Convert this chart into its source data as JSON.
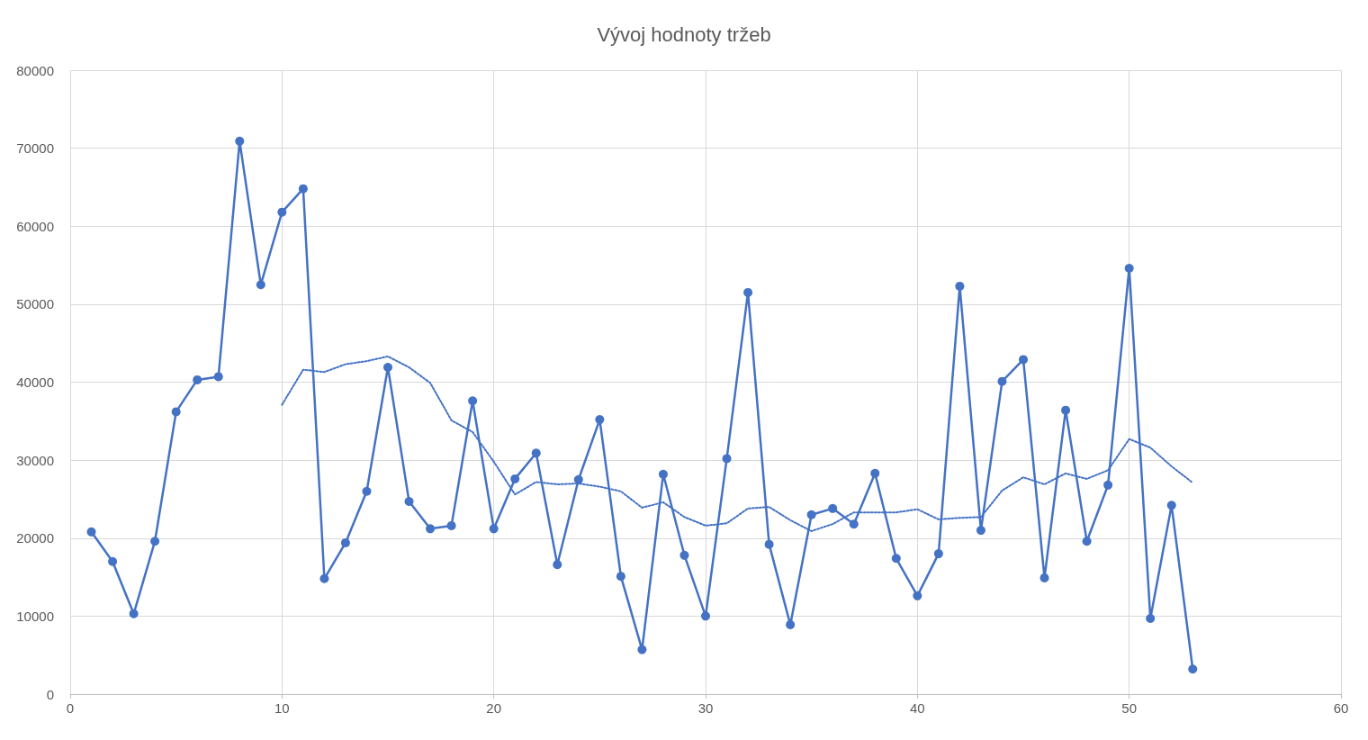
{
  "chart_data": {
    "type": "line",
    "title": "Vývoj hodnoty tržeb",
    "xlim": [
      0,
      60
    ],
    "xticks": [
      0,
      10,
      20,
      30,
      40,
      50,
      60
    ],
    "ylim": [
      0,
      80000
    ],
    "yticks": [
      0,
      10000,
      20000,
      30000,
      40000,
      50000,
      60000,
      70000,
      80000
    ],
    "grid": true,
    "series": [
      {
        "color": "#4472c4",
        "marker": "circle",
        "line_style": "solid",
        "x": [
          1,
          2,
          3,
          4,
          5,
          6,
          7,
          8,
          9,
          10,
          11,
          12,
          13,
          14,
          15,
          16,
          17,
          18,
          19,
          20,
          21,
          22,
          23,
          24,
          25,
          26,
          27,
          28,
          29,
          30,
          31,
          32,
          33,
          34,
          35,
          36,
          37,
          38,
          39,
          40,
          41,
          42,
          43,
          44,
          45,
          46,
          47,
          48,
          49,
          50,
          51,
          52,
          53
        ],
        "values": [
          20800,
          17000,
          10300,
          19600,
          36200,
          40300,
          40700,
          70900,
          52500,
          61800,
          64800,
          14800,
          19400,
          26000,
          41900,
          24700,
          21200,
          21600,
          37600,
          21200,
          27600,
          30900,
          16600,
          27500,
          35200,
          15100,
          5700,
          28200,
          17800,
          10000,
          30200,
          51500,
          19200,
          8900,
          23000,
          23800,
          21800,
          28300,
          17400,
          12600,
          18000,
          52300,
          21000,
          40100,
          42900,
          14900,
          36400,
          19600,
          26800,
          54600,
          9700,
          24200,
          3200
        ]
      },
      {
        "color": "#4472c4",
        "marker": "none",
        "line_style": "dotted",
        "x": [
          10,
          11,
          12,
          13,
          14,
          15,
          16,
          17,
          18,
          19,
          20,
          21,
          22,
          23,
          24,
          25,
          26,
          27,
          28,
          29,
          30,
          31,
          32,
          33,
          34,
          35,
          36,
          37,
          38,
          39,
          40,
          41,
          42,
          43,
          44,
          45,
          46,
          47,
          48,
          49,
          50,
          51,
          52,
          53
        ],
        "values": [
          37100,
          41600,
          41300,
          42300,
          42700,
          43300,
          41900,
          39900,
          35100,
          33600,
          29800,
          25600,
          27200,
          26900,
          27000,
          26600,
          26000,
          23900,
          24600,
          22700,
          21600,
          21900,
          23800,
          24000,
          22300,
          20900,
          21800,
          23300,
          23300,
          23300,
          23700,
          22400,
          22600,
          22700,
          26100,
          27800,
          26900,
          28300,
          27600,
          28700,
          32700,
          31600,
          29200,
          27100
        ]
      }
    ]
  }
}
